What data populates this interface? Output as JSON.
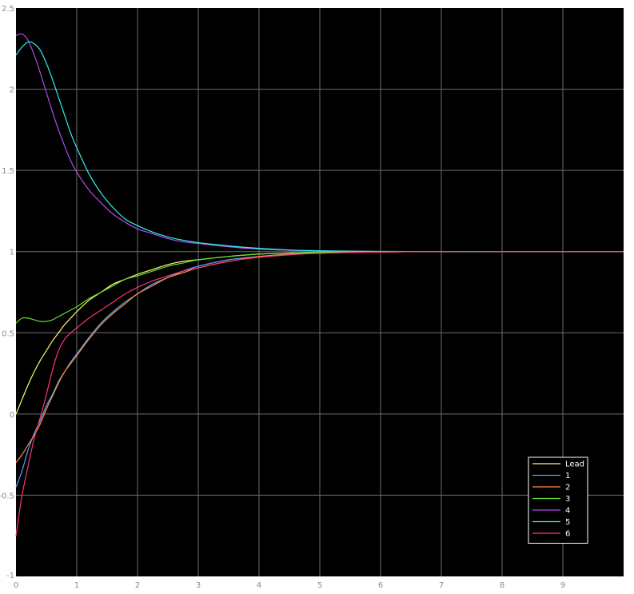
{
  "chart_data": {
    "type": "line",
    "title": "",
    "xlabel": "",
    "ylabel": "",
    "xlim": [
      0,
      10
    ],
    "ylim": [
      -1,
      2.5
    ],
    "xticks": [
      "0",
      "1",
      "2",
      "3",
      "4",
      "5",
      "6",
      "7",
      "8",
      "9"
    ],
    "yticks": [
      "-1",
      "-0.5",
      "0",
      "0.5",
      "1",
      "1.5",
      "2",
      "2.5"
    ],
    "background": "#000000",
    "grid": true,
    "grid_color": "#6e6e6e",
    "legend_position": "bottom-right",
    "x": [
      0,
      0.1,
      0.2,
      0.3,
      0.4,
      0.5,
      0.6,
      0.7,
      0.8,
      0.9,
      1.0,
      1.2,
      1.4,
      1.6,
      1.8,
      2.0,
      2.25,
      2.5,
      2.75,
      3.0,
      3.5,
      4.0,
      4.5,
      5.0,
      5.5,
      6.0,
      7.0,
      8.0,
      9.0,
      10.0
    ],
    "series": [
      {
        "name": "Lead",
        "color": "#ffff66",
        "values": [
          0.0,
          0.09,
          0.18,
          0.26,
          0.33,
          0.39,
          0.45,
          0.5,
          0.55,
          0.59,
          0.63,
          0.7,
          0.75,
          0.8,
          0.83,
          0.86,
          0.89,
          0.92,
          0.94,
          0.95,
          0.97,
          0.985,
          0.992,
          0.996,
          0.998,
          0.999,
          1.0,
          1.0,
          1.0,
          1.0
        ]
      },
      {
        "name": "1",
        "color": "#4ea6ff",
        "values": [
          -0.45,
          -0.35,
          -0.22,
          -0.12,
          -0.04,
          0.05,
          0.12,
          0.2,
          0.26,
          0.32,
          0.37,
          0.47,
          0.56,
          0.63,
          0.69,
          0.74,
          0.8,
          0.84,
          0.88,
          0.91,
          0.95,
          0.97,
          0.985,
          0.993,
          0.996,
          0.998,
          1.0,
          1.0,
          1.0,
          1.0
        ]
      },
      {
        "name": "2",
        "color": "#ff8c3a",
        "values": [
          -0.3,
          -0.25,
          -0.19,
          -0.13,
          -0.06,
          0.03,
          0.11,
          0.19,
          0.26,
          0.31,
          0.36,
          0.46,
          0.55,
          0.62,
          0.68,
          0.74,
          0.79,
          0.84,
          0.87,
          0.9,
          0.94,
          0.97,
          0.983,
          0.99,
          0.995,
          0.998,
          1.0,
          1.0,
          1.0,
          1.0
        ]
      },
      {
        "name": "3",
        "color": "#66e033",
        "values": [
          0.56,
          0.59,
          0.59,
          0.58,
          0.57,
          0.57,
          0.58,
          0.6,
          0.62,
          0.64,
          0.66,
          0.71,
          0.75,
          0.79,
          0.83,
          0.85,
          0.88,
          0.91,
          0.93,
          0.95,
          0.97,
          0.985,
          0.992,
          0.996,
          0.998,
          0.999,
          1.0,
          1.0,
          1.0,
          1.0
        ]
      },
      {
        "name": "4",
        "color": "#b14df0",
        "values": [
          2.33,
          2.34,
          2.3,
          2.21,
          2.1,
          1.98,
          1.86,
          1.75,
          1.65,
          1.56,
          1.49,
          1.38,
          1.3,
          1.23,
          1.18,
          1.14,
          1.11,
          1.08,
          1.06,
          1.05,
          1.03,
          1.015,
          1.008,
          1.004,
          1.002,
          1.001,
          1.0,
          1.0,
          1.0,
          1.0
        ]
      },
      {
        "name": "5",
        "color": "#33f0f0",
        "values": [
          2.21,
          2.26,
          2.29,
          2.28,
          2.24,
          2.16,
          2.06,
          1.95,
          1.84,
          1.73,
          1.64,
          1.48,
          1.36,
          1.27,
          1.2,
          1.16,
          1.12,
          1.09,
          1.07,
          1.055,
          1.035,
          1.02,
          1.01,
          1.005,
          1.003,
          1.001,
          1.0,
          1.0,
          1.0,
          1.0
        ]
      },
      {
        "name": "6",
        "color": "#ff3377",
        "values": [
          -0.75,
          -0.5,
          -0.32,
          -0.15,
          -0.02,
          0.12,
          0.27,
          0.39,
          0.46,
          0.5,
          0.53,
          0.59,
          0.64,
          0.69,
          0.74,
          0.78,
          0.82,
          0.85,
          0.88,
          0.9,
          0.94,
          0.965,
          0.98,
          0.99,
          0.995,
          0.998,
          1.0,
          1.0,
          1.0,
          1.0
        ]
      }
    ]
  }
}
